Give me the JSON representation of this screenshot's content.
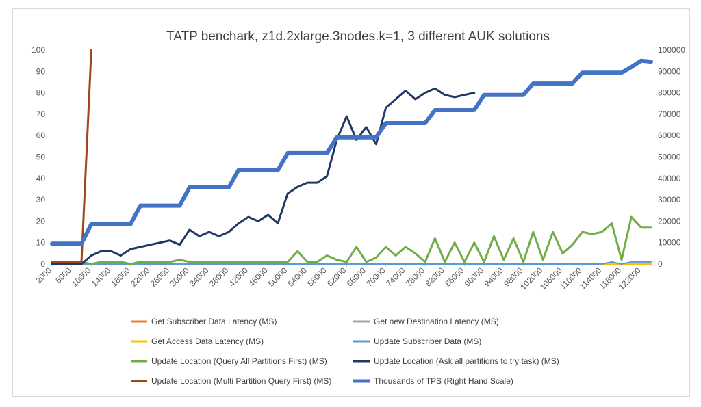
{
  "chart_data": {
    "type": "line",
    "title": "TATP benchark, z1d.2xlarge.3nodes.k=1, 3 different AUK solutions",
    "xlabel": "",
    "ylabel": "",
    "y2label": "",
    "x": [
      2000,
      4000,
      6000,
      8000,
      10000,
      12000,
      14000,
      16000,
      18000,
      20000,
      22000,
      24000,
      26000,
      28000,
      30000,
      32000,
      34000,
      36000,
      38000,
      40000,
      42000,
      44000,
      46000,
      48000,
      50000,
      52000,
      54000,
      56000,
      58000,
      60000,
      62000,
      64000,
      66000,
      68000,
      70000,
      72000,
      74000,
      76000,
      78000,
      80000,
      82000,
      84000,
      86000,
      88000,
      90000,
      92000,
      94000,
      96000,
      98000,
      100000,
      102000,
      104000,
      106000,
      108000,
      110000,
      112000,
      114000,
      116000,
      118000,
      120000,
      122000,
      124000
    ],
    "x_tick_labels": [
      "2000",
      "6000",
      "10000",
      "14000",
      "18000",
      "22000",
      "26000",
      "30000",
      "34000",
      "38000",
      "42000",
      "46000",
      "50000",
      "54000",
      "58000",
      "62000",
      "66000",
      "70000",
      "74000",
      "78000",
      "82000",
      "86000",
      "90000",
      "94000",
      "98000",
      "102000",
      "106000",
      "110000",
      "114000",
      "118000",
      "122000"
    ],
    "ylim": [
      0,
      100
    ],
    "y_ticks": [
      "0",
      "10",
      "20",
      "30",
      "40",
      "50",
      "60",
      "70",
      "80",
      "90",
      "100"
    ],
    "y2lim": [
      0,
      100000
    ],
    "y2_ticks": [
      "0",
      "10000",
      "20000",
      "30000",
      "40000",
      "50000",
      "60000",
      "70000",
      "80000",
      "90000",
      "100000"
    ],
    "legend_position": "bottom",
    "grid": false,
    "series": [
      {
        "name": "Get Subscriber Data Latency (MS)",
        "color": "#ed7d31",
        "axis": "left",
        "width": 2,
        "values": [
          0,
          0,
          0,
          0,
          0,
          0,
          0,
          0,
          0,
          0,
          0,
          0,
          0,
          0,
          0,
          0,
          0,
          0,
          0,
          0,
          0,
          0,
          0,
          0,
          0,
          0,
          0,
          0,
          0,
          0,
          0,
          0,
          0,
          0,
          0,
          0,
          0,
          0,
          0,
          0,
          0,
          0,
          0,
          0,
          0,
          0,
          0,
          0,
          0,
          0,
          0,
          0,
          0,
          0,
          0,
          0,
          0,
          0,
          0,
          0,
          0,
          0
        ]
      },
      {
        "name": "Get new Destination Latency (MS)",
        "color": "#a5a5a5",
        "axis": "left",
        "width": 2,
        "values": [
          0,
          0,
          0,
          0,
          0,
          0,
          0,
          0,
          0,
          0,
          0,
          0,
          0,
          0,
          0,
          0,
          0,
          0,
          0,
          0,
          0,
          0,
          0,
          0,
          0,
          0,
          0,
          0,
          0,
          0,
          0,
          0,
          0,
          0,
          0,
          0,
          0,
          0,
          0,
          0,
          0,
          0,
          0,
          0,
          0,
          0,
          0,
          0,
          0,
          0,
          0,
          0,
          0,
          0,
          0,
          0,
          0,
          0,
          0,
          0,
          0,
          0
        ]
      },
      {
        "name": "Get Access Data Latency (MS)",
        "color": "#ffc000",
        "axis": "left",
        "width": 2,
        "values": [
          0,
          0,
          0,
          0,
          0,
          0,
          0,
          0,
          0,
          0,
          0,
          0,
          0,
          0,
          0,
          0,
          0,
          0,
          0,
          0,
          0,
          0,
          0,
          0,
          0,
          0,
          0,
          0,
          0,
          0,
          0,
          0,
          0,
          0,
          0,
          0,
          0,
          0,
          0,
          0,
          0,
          0,
          0,
          0,
          0,
          0,
          0,
          0,
          0,
          0,
          0,
          0,
          0,
          0,
          0,
          0,
          0,
          0,
          0,
          0,
          0,
          0
        ]
      },
      {
        "name": "Update Subscriber Data (MS)",
        "color": "#5b9bd5",
        "axis": "left",
        "width": 2,
        "values": [
          0,
          0,
          0,
          0,
          0,
          0,
          0,
          0,
          0,
          0,
          0,
          0,
          0,
          0,
          0,
          0,
          0,
          0,
          0,
          0,
          0,
          0,
          0,
          0,
          0,
          0,
          0,
          0,
          0,
          0,
          0,
          0,
          0,
          0,
          0,
          0,
          0,
          0,
          0,
          0,
          0,
          0,
          0,
          0,
          0,
          0,
          0,
          0,
          0,
          0,
          0,
          0,
          0,
          0,
          0,
          0,
          0,
          1,
          0,
          1,
          1,
          1
        ]
      },
      {
        "name": "Update Location (Query All Partitions First) (MS)",
        "color": "#70ad47",
        "axis": "left",
        "width": 3,
        "values": [
          1,
          1,
          1,
          1,
          0,
          1,
          1,
          1,
          0,
          1,
          1,
          1,
          1,
          2,
          1,
          1,
          1,
          1,
          1,
          1,
          1,
          1,
          1,
          1,
          1,
          6,
          1,
          1,
          4,
          2,
          1,
          8,
          1,
          3,
          8,
          4,
          8,
          5,
          1,
          12,
          1,
          10,
          1,
          10,
          1,
          13,
          2,
          12,
          1,
          15,
          2,
          15,
          5,
          9,
          15,
          14,
          15,
          19,
          2,
          22,
          17,
          17
        ]
      },
      {
        "name": "Update Location (Ask all partitions to try task) (MS)",
        "color": "#203864",
        "axis": "left",
        "width": 3,
        "values": [
          0,
          0,
          0,
          0,
          4,
          6,
          6,
          4,
          7,
          8,
          9,
          10,
          11,
          9,
          16,
          13,
          15,
          13,
          15,
          19,
          22,
          20,
          23,
          19,
          33,
          36,
          38,
          38,
          41,
          58,
          69,
          58,
          64,
          56,
          73,
          77,
          81,
          77,
          80,
          82,
          79,
          78,
          79,
          80,
          null,
          null,
          null,
          null,
          null,
          null,
          null,
          null,
          null,
          null,
          null,
          null,
          null,
          null,
          null,
          null,
          null,
          null
        ]
      },
      {
        "name": "Update Location (Multi Partition Query First) (MS)",
        "color": "#a0461c",
        "axis": "left",
        "width": 3,
        "values": [
          1,
          1,
          1,
          1,
          100,
          null,
          null,
          null,
          null,
          null,
          null,
          null,
          null,
          null,
          null,
          null,
          null,
          null,
          null,
          null,
          null,
          null,
          null,
          null,
          null,
          null,
          null,
          null,
          null,
          null,
          null,
          null,
          null,
          null,
          null,
          null,
          null,
          null,
          null,
          null,
          null,
          null,
          null,
          null,
          null,
          null,
          null,
          null,
          null,
          null,
          null,
          null,
          null,
          null,
          null,
          null,
          null,
          null,
          null,
          null,
          null,
          null
        ]
      },
      {
        "name": "Thousands of TPS (Right Hand Scale)",
        "color": "#4472c4",
        "axis": "right",
        "width": 6,
        "values": [
          9500,
          9500,
          9500,
          9500,
          18700,
          18700,
          18700,
          18700,
          18700,
          27300,
          27300,
          27300,
          27300,
          27300,
          35800,
          35800,
          35800,
          35800,
          35800,
          43900,
          43900,
          43900,
          43900,
          43900,
          51800,
          51800,
          51800,
          51800,
          51800,
          59200,
          59200,
          59200,
          59200,
          59200,
          65800,
          65800,
          65800,
          65800,
          65800,
          71900,
          71900,
          71900,
          71900,
          71900,
          79000,
          79000,
          79000,
          79000,
          79000,
          84300,
          84300,
          84300,
          84300,
          84300,
          89400,
          89400,
          89400,
          89400,
          89400,
          92000,
          95000,
          94500
        ]
      }
    ]
  }
}
